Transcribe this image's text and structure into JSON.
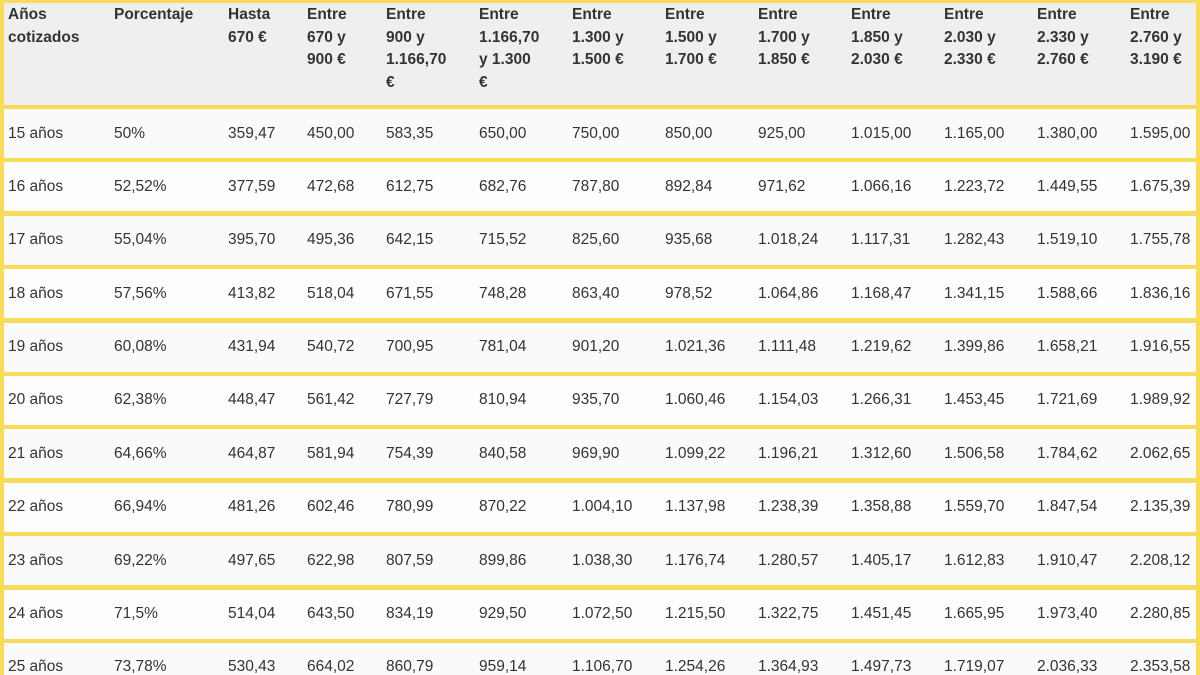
{
  "table": {
    "headers": [
      "Años\ncotizados",
      "Porcentaje",
      "Hasta\n670 €",
      "Entre\n670 y\n900 €",
      "Entre\n900 y\n1.166,70\n€",
      "Entre\n1.166,70\ny 1.300\n€",
      "Entre\n1.300 y\n1.500 €",
      "Entre\n1.500 y\n1.700 €",
      "Entre\n1.700 y\n1.850 €",
      "Entre\n1.850 y\n2.030 €",
      "Entre\n2.030 y\n2.330 €",
      "Entre\n2.330 y\n2.760 €",
      "Entre\n2.760 y\n3.190 €"
    ],
    "rows": [
      [
        "15 años",
        "50%",
        "359,47",
        "450,00",
        "583,35",
        "650,00",
        "750,00",
        "850,00",
        "925,00",
        "1.015,00",
        "1.165,00",
        "1.380,00",
        "1.595,00"
      ],
      [
        "16 años",
        "52,52%",
        "377,59",
        "472,68",
        "612,75",
        "682,76",
        "787,80",
        "892,84",
        "971,62",
        "1.066,16",
        "1.223,72",
        "1.449,55",
        "1.675,39"
      ],
      [
        "17 años",
        "55,04%",
        "395,70",
        "495,36",
        "642,15",
        "715,52",
        "825,60",
        "935,68",
        "1.018,24",
        "1.117,31",
        "1.282,43",
        "1.519,10",
        "1.755,78"
      ],
      [
        "18 años",
        "57,56%",
        "413,82",
        "518,04",
        "671,55",
        "748,28",
        "863,40",
        "978,52",
        "1.064,86",
        "1.168,47",
        "1.341,15",
        "1.588,66",
        "1.836,16"
      ],
      [
        "19 años",
        "60,08%",
        "431,94",
        "540,72",
        "700,95",
        "781,04",
        "901,20",
        "1.021,36",
        "1.111,48",
        "1.219,62",
        "1.399,86",
        "1.658,21",
        "1.916,55"
      ],
      [
        "20 años",
        "62,38%",
        "448,47",
        "561,42",
        "727,79",
        "810,94",
        "935,70",
        "1.060,46",
        "1.154,03",
        "1.266,31",
        "1.453,45",
        "1.721,69",
        "1.989,92"
      ],
      [
        "21 años",
        "64,66%",
        "464,87",
        "581,94",
        "754,39",
        "840,58",
        "969,90",
        "1.099,22",
        "1.196,21",
        "1.312,60",
        "1.506,58",
        "1.784,62",
        "2.062,65"
      ],
      [
        "22 años",
        "66,94%",
        "481,26",
        "602,46",
        "780,99",
        "870,22",
        "1.004,10",
        "1.137,98",
        "1.238,39",
        "1.358,88",
        "1.559,70",
        "1.847,54",
        "2.135,39"
      ],
      [
        "23 años",
        "69,22%",
        "497,65",
        "622,98",
        "807,59",
        "899,86",
        "1.038,30",
        "1.176,74",
        "1.280,57",
        "1.405,17",
        "1.612,83",
        "1.910,47",
        "2.208,12"
      ],
      [
        "24 años",
        "71,5%",
        "514,04",
        "643,50",
        "834,19",
        "929,50",
        "1.072,50",
        "1.215,50",
        "1.322,75",
        "1.451,45",
        "1.665,95",
        "1.973,40",
        "2.280,85"
      ],
      [
        "25 años",
        "73,78%",
        "530,43",
        "664,02",
        "860,79",
        "959,14",
        "1.106,70",
        "1.254,26",
        "1.364,93",
        "1.497,73",
        "1.719,07",
        "2.036,33",
        "2.353,58"
      ]
    ]
  },
  "colors": {
    "border": "#f7dc5a",
    "header_bg": "#efefef",
    "row_bg": "#fafafa",
    "text": "#333333"
  }
}
